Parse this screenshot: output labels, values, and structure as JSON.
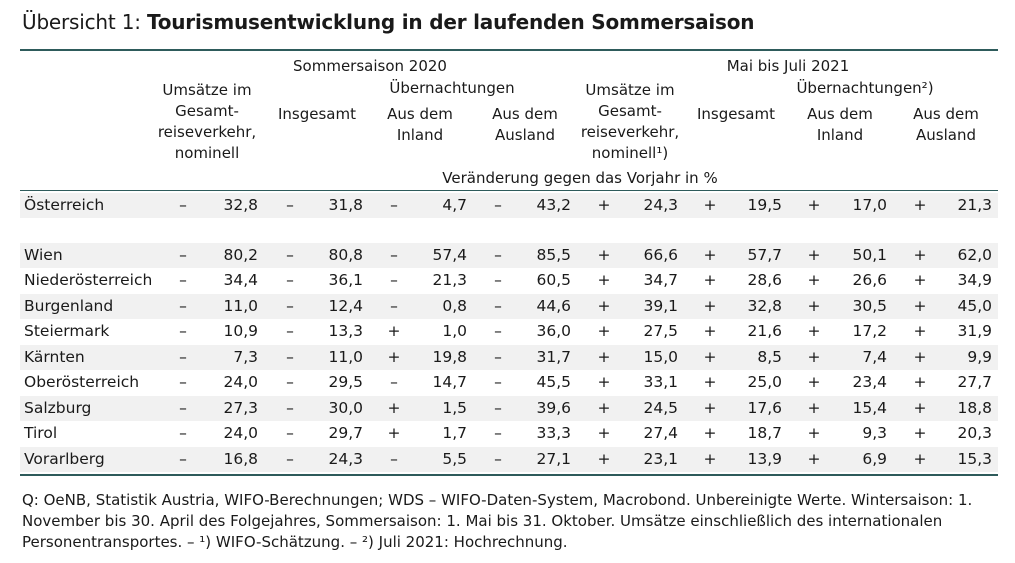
{
  "title": {
    "prefix": "Übersicht 1: ",
    "main": "Tourismusentwicklung in der laufenden Sommersaison"
  },
  "header": {
    "group1": "Sommersaison 2020",
    "group2": "Mai bis Juli 2021",
    "sub1": "Übernachtungen",
    "sub2": "Übernachtungen²)",
    "col_umsatz": [
      "Umsätze im",
      "Gesamt-",
      "reiseverkehr,",
      "nominell"
    ],
    "col_umsatz2": [
      "Umsätze im",
      "Gesamt-",
      "reiseverkehr,",
      "nominell¹)"
    ],
    "col_insgesamt": "Insgesamt",
    "col_inland": [
      "Aus dem",
      "Inland"
    ],
    "col_ausland": [
      "Aus dem",
      "Ausland"
    ],
    "unit": "Veränderung gegen das Vorjahr in %"
  },
  "rows": [
    {
      "label": "Österreich",
      "cells": [
        [
          "–",
          "32,8"
        ],
        [
          "–",
          "31,8"
        ],
        [
          "–",
          "4,7"
        ],
        [
          "–",
          "43,2"
        ],
        [
          "+",
          "24,3"
        ],
        [
          "+",
          "19,5"
        ],
        [
          "+",
          "17,0"
        ],
        [
          "+",
          "21,3"
        ]
      ]
    },
    {
      "label": "Wien",
      "cells": [
        [
          "–",
          "80,2"
        ],
        [
          "–",
          "80,8"
        ],
        [
          "–",
          "57,4"
        ],
        [
          "–",
          "85,5"
        ],
        [
          "+",
          "66,6"
        ],
        [
          "+",
          "57,7"
        ],
        [
          "+",
          "50,1"
        ],
        [
          "+",
          "62,0"
        ]
      ]
    },
    {
      "label": "Niederösterreich",
      "cells": [
        [
          "–",
          "34,4"
        ],
        [
          "–",
          "36,1"
        ],
        [
          "–",
          "21,3"
        ],
        [
          "–",
          "60,5"
        ],
        [
          "+",
          "34,7"
        ],
        [
          "+",
          "28,6"
        ],
        [
          "+",
          "26,6"
        ],
        [
          "+",
          "34,9"
        ]
      ]
    },
    {
      "label": "Burgenland",
      "cells": [
        [
          "–",
          "11,0"
        ],
        [
          "–",
          "12,4"
        ],
        [
          "–",
          "0,8"
        ],
        [
          "–",
          "44,6"
        ],
        [
          "+",
          "39,1"
        ],
        [
          "+",
          "32,8"
        ],
        [
          "+",
          "30,5"
        ],
        [
          "+",
          "45,0"
        ]
      ]
    },
    {
      "label": "Steiermark",
      "cells": [
        [
          "–",
          "10,9"
        ],
        [
          "–",
          "13,3"
        ],
        [
          "+",
          "1,0"
        ],
        [
          "–",
          "36,0"
        ],
        [
          "+",
          "27,5"
        ],
        [
          "+",
          "21,6"
        ],
        [
          "+",
          "17,2"
        ],
        [
          "+",
          "31,9"
        ]
      ]
    },
    {
      "label": "Kärnten",
      "cells": [
        [
          "–",
          "7,3"
        ],
        [
          "–",
          "11,0"
        ],
        [
          "+",
          "19,8"
        ],
        [
          "–",
          "31,7"
        ],
        [
          "+",
          "15,0"
        ],
        [
          "+",
          "8,5"
        ],
        [
          "+",
          "7,4"
        ],
        [
          "+",
          "9,9"
        ]
      ]
    },
    {
      "label": "Oberösterreich",
      "cells": [
        [
          "–",
          "24,0"
        ],
        [
          "–",
          "29,5"
        ],
        [
          "–",
          "14,7"
        ],
        [
          "–",
          "45,5"
        ],
        [
          "+",
          "33,1"
        ],
        [
          "+",
          "25,0"
        ],
        [
          "+",
          "23,4"
        ],
        [
          "+",
          "27,7"
        ]
      ]
    },
    {
      "label": "Salzburg",
      "cells": [
        [
          "–",
          "27,3"
        ],
        [
          "–",
          "30,0"
        ],
        [
          "+",
          "1,5"
        ],
        [
          "–",
          "39,6"
        ],
        [
          "+",
          "24,5"
        ],
        [
          "+",
          "17,6"
        ],
        [
          "+",
          "15,4"
        ],
        [
          "+",
          "18,8"
        ]
      ]
    },
    {
      "label": "Tirol",
      "cells": [
        [
          "–",
          "24,0"
        ],
        [
          "–",
          "29,7"
        ],
        [
          "+",
          "1,7"
        ],
        [
          "–",
          "33,3"
        ],
        [
          "+",
          "27,4"
        ],
        [
          "+",
          "18,7"
        ],
        [
          "+",
          "9,3"
        ],
        [
          "+",
          "20,3"
        ]
      ]
    },
    {
      "label": "Vorarlberg",
      "cells": [
        [
          "–",
          "16,8"
        ],
        [
          "–",
          "24,3"
        ],
        [
          "–",
          "5,5"
        ],
        [
          "–",
          "27,1"
        ],
        [
          "+",
          "23,1"
        ],
        [
          "+",
          "13,9"
        ],
        [
          "+",
          "6,9"
        ],
        [
          "+",
          "15,3"
        ]
      ]
    }
  ],
  "footnote": "Q: OeNB, Statistik Austria, WIFO-Berechnungen; WDS – WIFO-Daten-System, Macrobond. Unbereinigte Werte. Wintersaison: 1. November bis 30. April des Folgejahres, Sommersaison: 1. Mai bis 31. Oktober. Umsätze einschließlich des internationalen Personentransportes. – ¹) WIFO-Schätzung. – ²) Juli 2021: Hochrechnung."
}
